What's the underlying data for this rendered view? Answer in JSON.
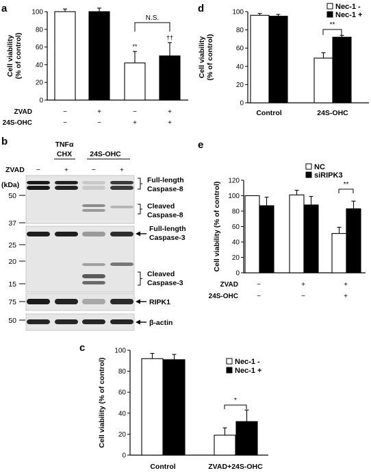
{
  "panels": {
    "a": "a",
    "b": "b",
    "c": "c",
    "d": "d",
    "e": "e"
  },
  "chart_data": [
    {
      "panel": "a",
      "type": "bar",
      "ylabel": "Cell viability\n(% of control)",
      "ylim": [
        0,
        100
      ],
      "yticks": [
        "0",
        "20",
        "40",
        "60",
        "80",
        "100"
      ],
      "bars": [
        {
          "value": 100,
          "err": 3,
          "fill": "white"
        },
        {
          "value": 100,
          "err": 4,
          "fill": "black"
        },
        {
          "value": 42,
          "err": 13,
          "fill": "white",
          "mark": "**"
        },
        {
          "value": 50,
          "err": 15,
          "fill": "black",
          "mark": "††"
        }
      ],
      "conditions": [
        {
          "label": "ZVAD",
          "values": [
            "−",
            "+",
            "−",
            "+"
          ]
        },
        {
          "label": "24S-OHC",
          "values": [
            "−",
            "−",
            "+",
            "+"
          ]
        }
      ],
      "bracket": {
        "from": 2,
        "to": 3,
        "label": "N.S."
      }
    },
    {
      "panel": "d",
      "type": "bar",
      "ylabel": "Cell viability\n(% of control)",
      "ylim": [
        0,
        100
      ],
      "yticks": [
        "0",
        "20",
        "40",
        "60",
        "80",
        "100"
      ],
      "categories": [
        "Control",
        "24S-OHC"
      ],
      "series": [
        {
          "name": "Nec-1 -",
          "fill": "white",
          "values": [
            96,
            49
          ],
          "err": [
            2,
            6
          ]
        },
        {
          "name": "Nec-1 +",
          "fill": "black",
          "values": [
            95,
            72
          ],
          "err": [
            2,
            2
          ]
        }
      ],
      "legend": "top-right",
      "bracket": {
        "category": 1,
        "label": "**"
      }
    },
    {
      "panel": "e",
      "type": "bar",
      "ylabel": "Cell viability (% of control)",
      "ylim": [
        0,
        120
      ],
      "yticks": [
        "0",
        "20",
        "40",
        "60",
        "80",
        "100",
        "120"
      ],
      "series": [
        {
          "name": "NC",
          "fill": "white",
          "values": [
            100,
            101,
            51
          ],
          "err": [
            0,
            6,
            8
          ]
        },
        {
          "name": "siRIPK3",
          "fill": "black",
          "values": [
            87,
            88,
            83
          ],
          "err": [
            11,
            11,
            10
          ]
        }
      ],
      "legend": "top-right",
      "conditions": [
        {
          "label": "ZVAD",
          "values": [
            "−",
            "+",
            "+"
          ]
        },
        {
          "label": "24S-OHC",
          "values": [
            "−",
            "−",
            "+"
          ]
        }
      ],
      "bracket": {
        "category": 2,
        "label": "**"
      }
    },
    {
      "panel": "c",
      "type": "bar",
      "ylabel": "Cell viability (% of control)",
      "ylim": [
        0,
        100
      ],
      "yticks": [
        "0",
        "20",
        "40",
        "60",
        "80",
        "100"
      ],
      "categories": [
        "Control",
        "ZVAD+24S-OHC"
      ],
      "series": [
        {
          "name": "Nec-1 -",
          "fill": "white",
          "values": [
            92,
            19
          ],
          "err": [
            5,
            7
          ]
        },
        {
          "name": "Nec-1 +",
          "fill": "black",
          "values": [
            91,
            32
          ],
          "err": [
            5,
            11
          ]
        }
      ],
      "legend": "right",
      "bracket": {
        "category": 1,
        "label": "*"
      }
    }
  ],
  "blot": {
    "header_treatments": [
      {
        "label": "TNFα",
        "sub": "CHX"
      },
      {
        "label": "24S-OHC",
        "sub": ""
      }
    ],
    "zvad_label": "ZVAD",
    "zvad": [
      "−",
      "+",
      "−",
      "+"
    ],
    "kda_label": "(kDa)",
    "markers": [
      "50",
      "37",
      "25",
      "20",
      "15",
      "75",
      "50"
    ],
    "labels": [
      {
        "line1": "Full-length",
        "line2": "Caspase-8",
        "style": "brace"
      },
      {
        "line1": "Cleaved",
        "line2": "Caspase-8",
        "style": "brace"
      },
      {
        "line1": "Full-length",
        "line2": "Caspase-3",
        "style": "arrow"
      },
      {
        "line1": "Cleaved",
        "line2": "Caspase-3",
        "style": "brace"
      },
      {
        "line1": "RIPK1",
        "line2": "",
        "style": "arrow"
      },
      {
        "line1": "β-actin",
        "line2": "",
        "style": "arrow"
      }
    ]
  }
}
